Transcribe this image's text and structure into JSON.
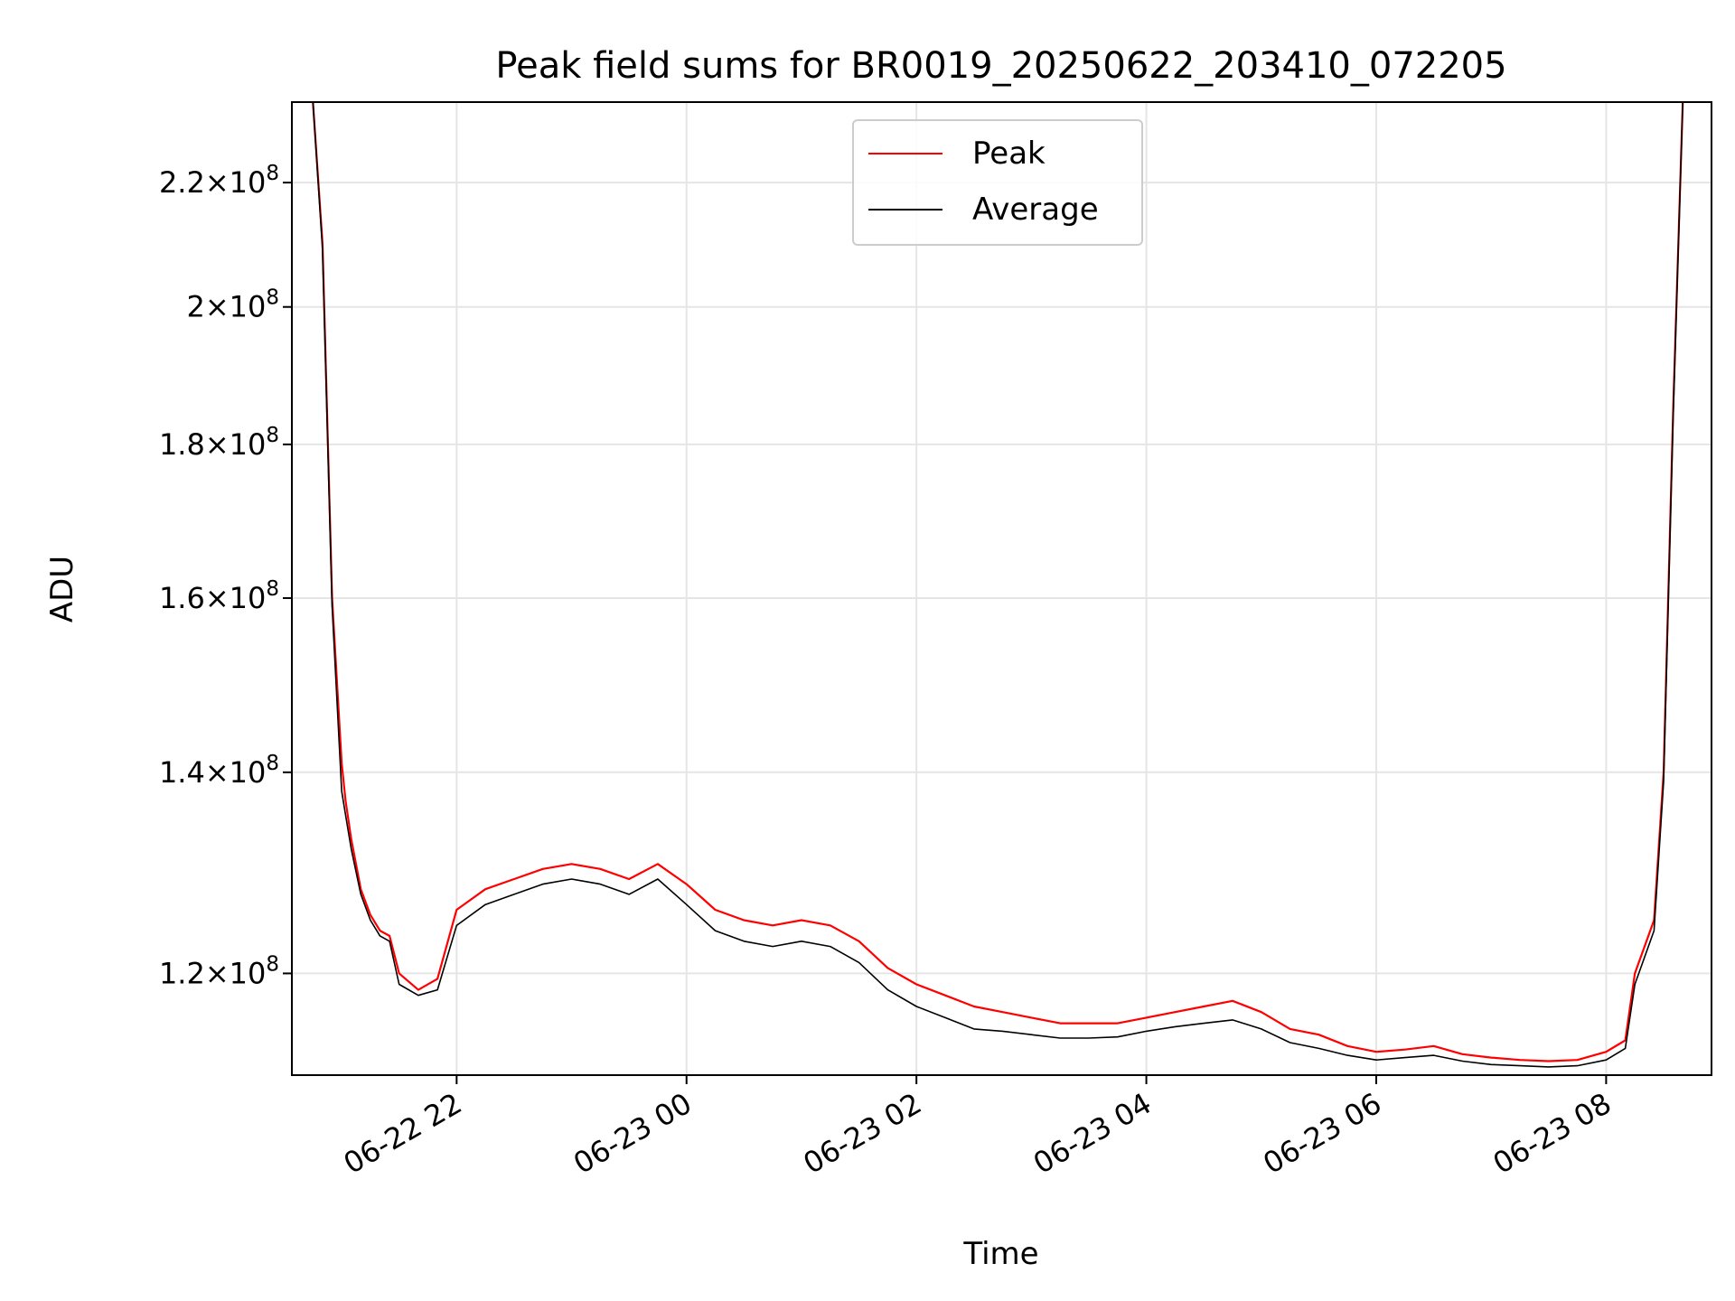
{
  "chart_data": {
    "type": "line",
    "title": "Peak field sums for BR0019_20250622_203410_072205",
    "xlabel": "Time",
    "ylabel": "ADU",
    "y_scale": "log",
    "xlim": [
      "2025-06-22 20:34",
      "2025-06-23 08:55"
    ],
    "ylim": [
      111000000,
      234000000
    ],
    "grid": true,
    "legend": "upper center",
    "x_tick_labels": [
      {
        "t": "2025-06-22 22:00",
        "label": "06-22 22"
      },
      {
        "t": "2025-06-23 00:00",
        "label": "06-23 00"
      },
      {
        "t": "2025-06-23 02:00",
        "label": "06-23 02"
      },
      {
        "t": "2025-06-23 04:00",
        "label": "06-23 04"
      },
      {
        "t": "2025-06-23 06:00",
        "label": "06-23 06"
      },
      {
        "t": "2025-06-23 08:00",
        "label": "06-23 08"
      }
    ],
    "y_tick_labels": [
      {
        "value": 120000000,
        "mant": "1.2",
        "exp": "8"
      },
      {
        "value": 140000000,
        "mant": "1.4",
        "exp": "8"
      },
      {
        "value": 160000000,
        "mant": "1.6",
        "exp": "8"
      },
      {
        "value": 180000000,
        "mant": "1.8",
        "exp": "8"
      },
      {
        "value": 200000000,
        "mant": "2",
        "exp": "8"
      },
      {
        "value": 220000000,
        "mant": "2.2",
        "exp": "8"
      }
    ],
    "series": [
      {
        "name": "Peak",
        "color": "#ff0000",
        "points": [
          [
            "2025-06-22 20:45",
            234000000
          ],
          [
            "2025-06-22 20:50",
            210000000
          ],
          [
            "2025-06-22 20:55",
            160000000
          ],
          [
            "2025-06-22 21:00",
            141000000
          ],
          [
            "2025-06-22 21:02",
            137000000
          ],
          [
            "2025-06-22 21:05",
            133000000
          ],
          [
            "2025-06-22 21:10",
            128000000
          ],
          [
            "2025-06-22 21:15",
            125500000
          ],
          [
            "2025-06-22 21:20",
            124000000
          ],
          [
            "2025-06-22 21:25",
            123500000
          ],
          [
            "2025-06-22 21:30",
            120000000
          ],
          [
            "2025-06-22 21:40",
            118500000
          ],
          [
            "2025-06-22 21:50",
            119500000
          ],
          [
            "2025-06-22 22:00",
            126000000
          ],
          [
            "2025-06-22 22:15",
            128000000
          ],
          [
            "2025-06-22 22:30",
            129000000
          ],
          [
            "2025-06-22 22:45",
            130000000
          ],
          [
            "2025-06-22 23:00",
            130500000
          ],
          [
            "2025-06-22 23:15",
            130000000
          ],
          [
            "2025-06-22 23:30",
            129000000
          ],
          [
            "2025-06-22 23:45",
            130500000
          ],
          [
            "2025-06-23 00:00",
            128500000
          ],
          [
            "2025-06-23 00:15",
            126000000
          ],
          [
            "2025-06-23 00:30",
            125000000
          ],
          [
            "2025-06-23 00:45",
            124500000
          ],
          [
            "2025-06-23 01:00",
            125000000
          ],
          [
            "2025-06-23 01:15",
            124500000
          ],
          [
            "2025-06-23 01:30",
            123000000
          ],
          [
            "2025-06-23 01:45",
            120500000
          ],
          [
            "2025-06-23 02:00",
            119000000
          ],
          [
            "2025-06-23 02:15",
            118000000
          ],
          [
            "2025-06-23 02:30",
            117000000
          ],
          [
            "2025-06-23 02:45",
            116500000
          ],
          [
            "2025-06-23 03:00",
            116000000
          ],
          [
            "2025-06-23 03:15",
            115500000
          ],
          [
            "2025-06-23 03:30",
            115500000
          ],
          [
            "2025-06-23 03:45",
            115500000
          ],
          [
            "2025-06-23 04:00",
            116000000
          ],
          [
            "2025-06-23 04:15",
            116500000
          ],
          [
            "2025-06-23 04:30",
            117000000
          ],
          [
            "2025-06-23 04:45",
            117500000
          ],
          [
            "2025-06-23 05:00",
            116500000
          ],
          [
            "2025-06-23 05:15",
            115000000
          ],
          [
            "2025-06-23 05:30",
            114500000
          ],
          [
            "2025-06-23 05:45",
            113500000
          ],
          [
            "2025-06-23 06:00",
            113000000
          ],
          [
            "2025-06-23 06:15",
            113200000
          ],
          [
            "2025-06-23 06:30",
            113500000
          ],
          [
            "2025-06-23 06:45",
            112800000
          ],
          [
            "2025-06-23 07:00",
            112500000
          ],
          [
            "2025-06-23 07:15",
            112300000
          ],
          [
            "2025-06-23 07:30",
            112200000
          ],
          [
            "2025-06-23 07:45",
            112300000
          ],
          [
            "2025-06-23 08:00",
            113000000
          ],
          [
            "2025-06-23 08:10",
            114000000
          ],
          [
            "2025-06-23 08:15",
            120000000
          ],
          [
            "2025-06-23 08:25",
            125000000
          ],
          [
            "2025-06-23 08:30",
            140000000
          ],
          [
            "2025-06-23 08:35",
            185000000
          ],
          [
            "2025-06-23 08:40",
            234000000
          ]
        ]
      },
      {
        "name": "Average",
        "color": "#000000",
        "points": [
          [
            "2025-06-22 20:45",
            234000000
          ],
          [
            "2025-06-22 20:50",
            209000000
          ],
          [
            "2025-06-22 20:55",
            159000000
          ],
          [
            "2025-06-22 21:00",
            138000000
          ],
          [
            "2025-06-22 21:02",
            135500000
          ],
          [
            "2025-06-22 21:05",
            132000000
          ],
          [
            "2025-06-22 21:10",
            127500000
          ],
          [
            "2025-06-22 21:15",
            125000000
          ],
          [
            "2025-06-22 21:20",
            123500000
          ],
          [
            "2025-06-22 21:25",
            123000000
          ],
          [
            "2025-06-22 21:30",
            119000000
          ],
          [
            "2025-06-22 21:40",
            118000000
          ],
          [
            "2025-06-22 21:50",
            118500000
          ],
          [
            "2025-06-22 22:00",
            124500000
          ],
          [
            "2025-06-22 22:15",
            126500000
          ],
          [
            "2025-06-22 22:30",
            127500000
          ],
          [
            "2025-06-22 22:45",
            128500000
          ],
          [
            "2025-06-22 23:00",
            129000000
          ],
          [
            "2025-06-22 23:15",
            128500000
          ],
          [
            "2025-06-22 23:30",
            127500000
          ],
          [
            "2025-06-22 23:45",
            129000000
          ],
          [
            "2025-06-23 00:00",
            126500000
          ],
          [
            "2025-06-23 00:15",
            124000000
          ],
          [
            "2025-06-23 00:30",
            123000000
          ],
          [
            "2025-06-23 00:45",
            122500000
          ],
          [
            "2025-06-23 01:00",
            123000000
          ],
          [
            "2025-06-23 01:15",
            122500000
          ],
          [
            "2025-06-23 01:30",
            121000000
          ],
          [
            "2025-06-23 01:45",
            118500000
          ],
          [
            "2025-06-23 02:00",
            117000000
          ],
          [
            "2025-06-23 02:15",
            116000000
          ],
          [
            "2025-06-23 02:30",
            115000000
          ],
          [
            "2025-06-23 02:45",
            114800000
          ],
          [
            "2025-06-23 03:00",
            114500000
          ],
          [
            "2025-06-23 03:15",
            114200000
          ],
          [
            "2025-06-23 03:30",
            114200000
          ],
          [
            "2025-06-23 03:45",
            114300000
          ],
          [
            "2025-06-23 04:00",
            114800000
          ],
          [
            "2025-06-23 04:15",
            115200000
          ],
          [
            "2025-06-23 04:30",
            115500000
          ],
          [
            "2025-06-23 04:45",
            115800000
          ],
          [
            "2025-06-23 05:00",
            115000000
          ],
          [
            "2025-06-23 05:15",
            113800000
          ],
          [
            "2025-06-23 05:30",
            113300000
          ],
          [
            "2025-06-23 05:45",
            112700000
          ],
          [
            "2025-06-23 06:00",
            112300000
          ],
          [
            "2025-06-23 06:15",
            112500000
          ],
          [
            "2025-06-23 06:30",
            112700000
          ],
          [
            "2025-06-23 06:45",
            112200000
          ],
          [
            "2025-06-23 07:00",
            111900000
          ],
          [
            "2025-06-23 07:15",
            111800000
          ],
          [
            "2025-06-23 07:30",
            111700000
          ],
          [
            "2025-06-23 07:45",
            111800000
          ],
          [
            "2025-06-23 08:00",
            112300000
          ],
          [
            "2025-06-23 08:10",
            113300000
          ],
          [
            "2025-06-23 08:15",
            119000000
          ],
          [
            "2025-06-23 08:25",
            124000000
          ],
          [
            "2025-06-23 08:30",
            139000000
          ],
          [
            "2025-06-23 08:35",
            184000000
          ],
          [
            "2025-06-23 08:40",
            234000000
          ]
        ]
      }
    ]
  }
}
